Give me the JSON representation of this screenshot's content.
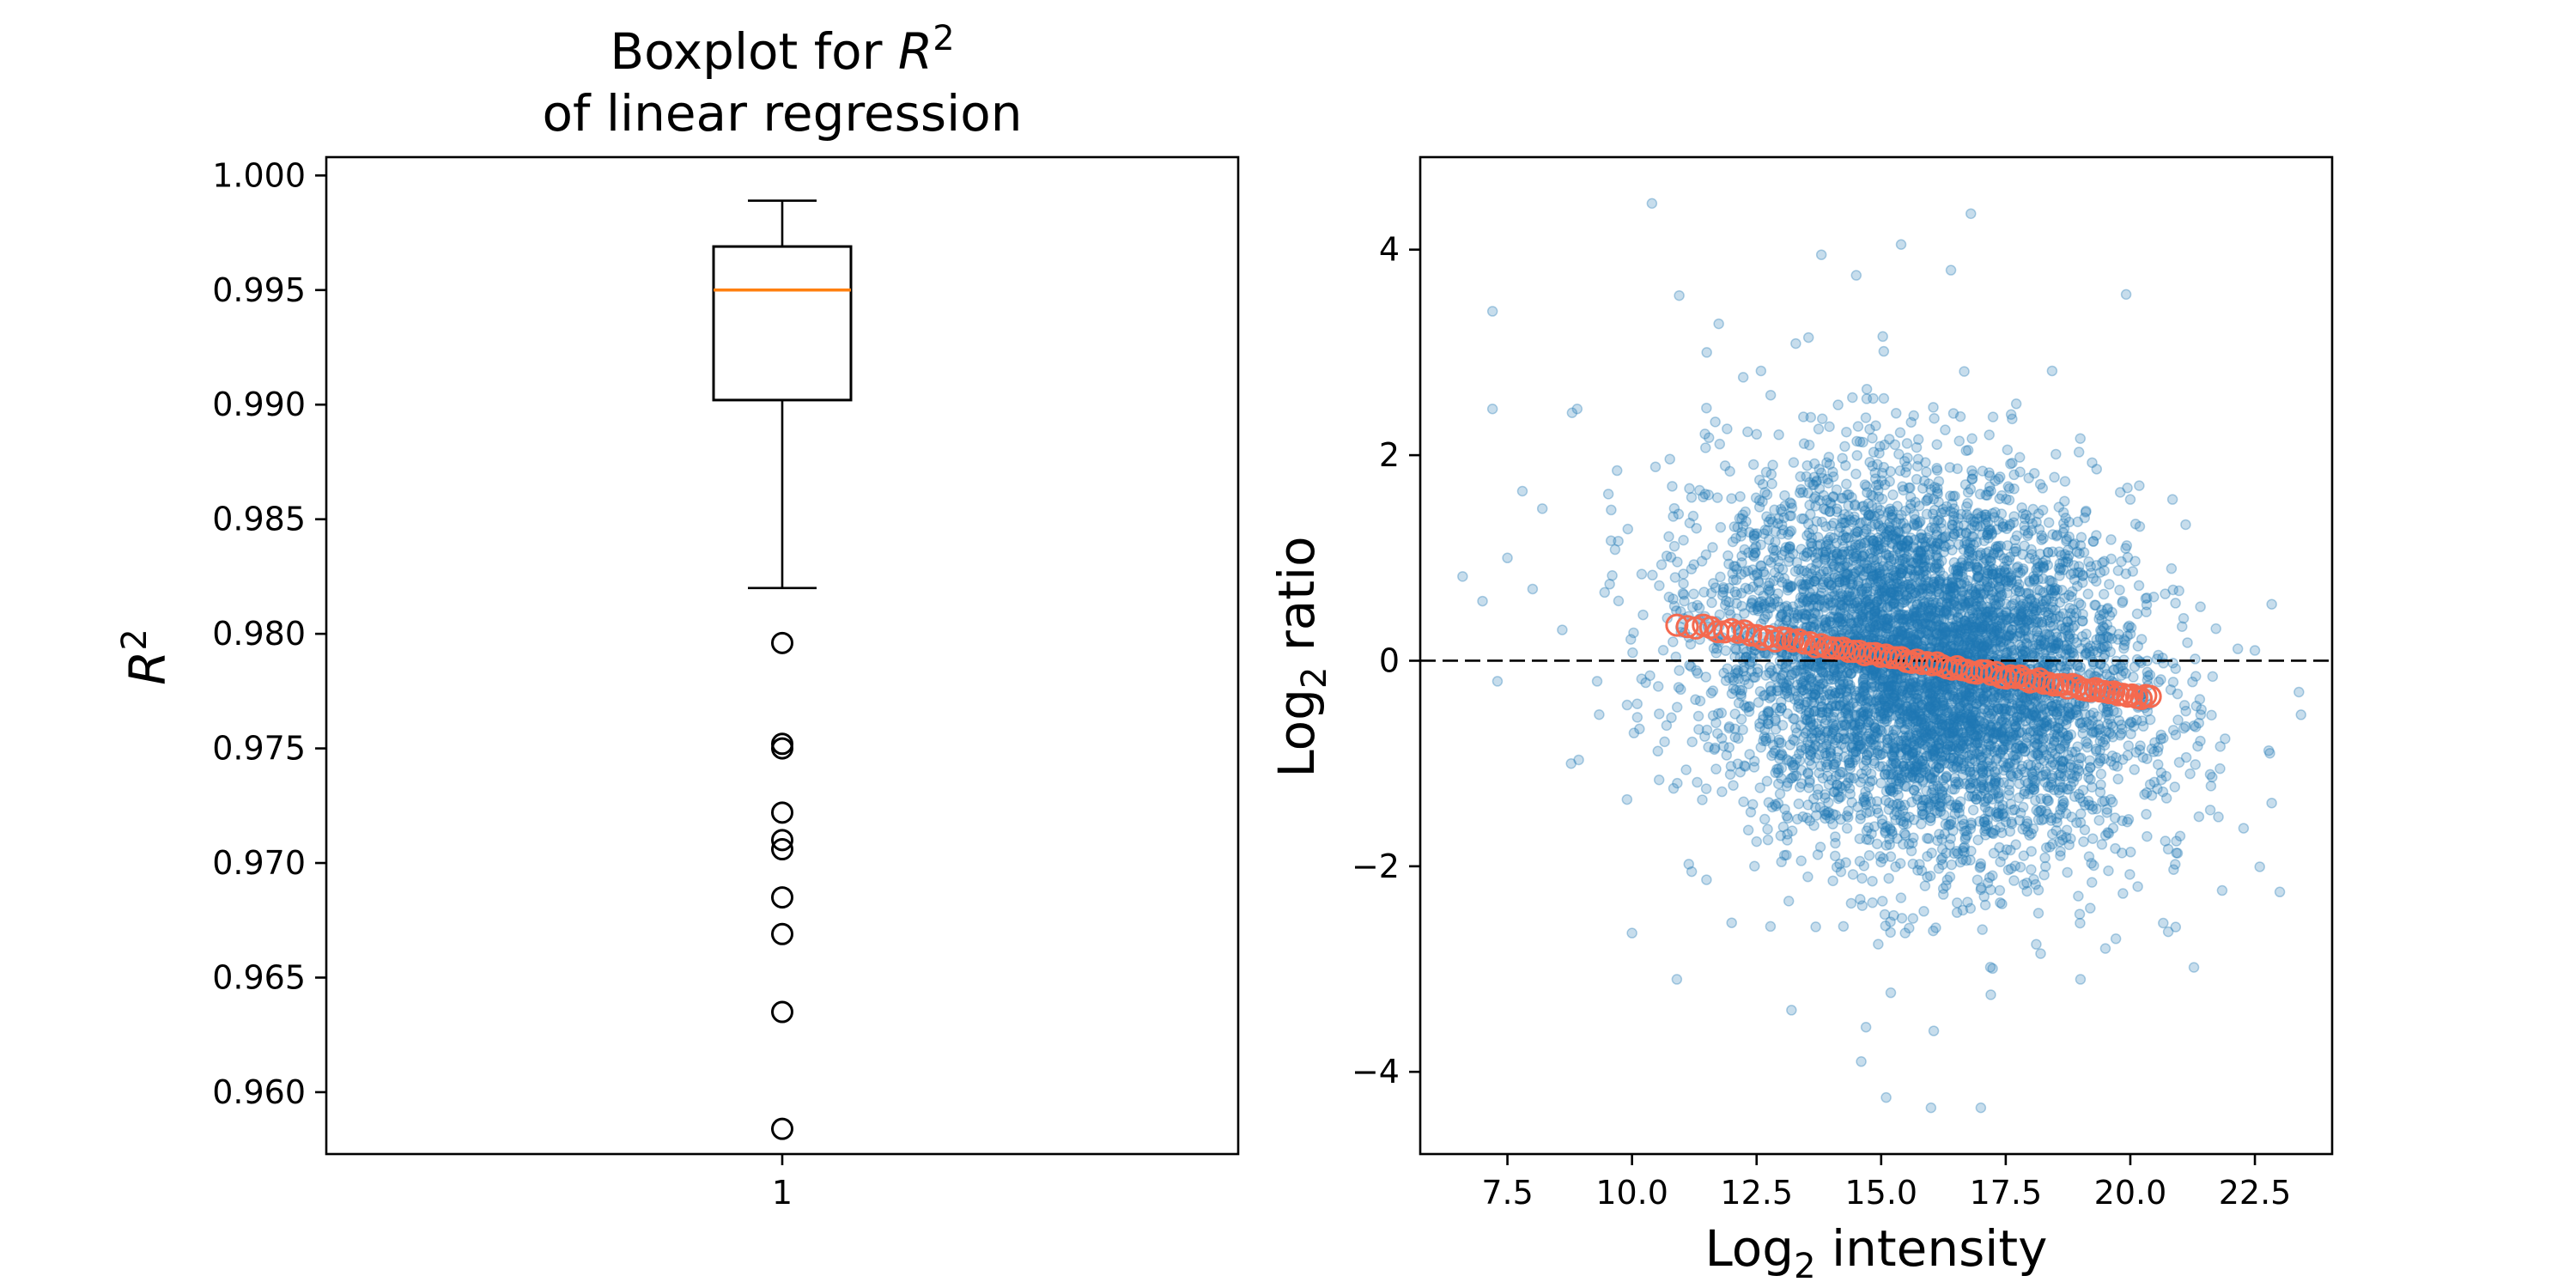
{
  "chart_data": [
    {
      "type": "box",
      "title_line1": "Boxplot for ",
      "title_sym": "R",
      "title_sup": "2",
      "title_line2": "of linear regression",
      "ylabel_sym": "R",
      "ylabel_sup": "2",
      "xlabel": "",
      "ylim": [
        0.9573,
        1.0008
      ],
      "yticks": [
        "0.960",
        "0.965",
        "0.970",
        "0.975",
        "0.980",
        "0.985",
        "0.990",
        "0.995",
        "1.000"
      ],
      "ytick_values": [
        0.96,
        0.965,
        0.97,
        0.975,
        0.98,
        0.985,
        0.99,
        0.995,
        1.0
      ],
      "xticks": [
        "1"
      ],
      "box": {
        "whisker_low": 0.982,
        "q1": 0.9902,
        "median": 0.995,
        "q3": 0.9969,
        "whisker_high": 0.9989
      },
      "fliers": [
        0.9796,
        0.9752,
        0.975,
        0.9722,
        0.971,
        0.9706,
        0.9685,
        0.9669,
        0.9635,
        0.9584
      ],
      "colors": {
        "median": "#ff7f0e",
        "box": "#000000",
        "flier": "#000000"
      }
    },
    {
      "type": "scatter",
      "xlabel_pre": "Log",
      "xlabel_sub": "2",
      "xlabel_post": " intensity",
      "ylabel_pre": "Log",
      "ylabel_sub": "2",
      "ylabel_post": " ratio",
      "xlim": [
        5.75,
        24.05
      ],
      "ylim": [
        -4.8,
        4.9
      ],
      "xticks": [
        "7.5",
        "10.0",
        "12.5",
        "15.0",
        "17.5",
        "20.0",
        "22.5"
      ],
      "xtick_values": [
        7.5,
        10.0,
        12.5,
        15.0,
        17.5,
        20.0,
        22.5
      ],
      "yticks": [
        "−4",
        "−2",
        "0",
        "2",
        "4"
      ],
      "ytick_values": [
        -4,
        -2,
        0,
        2,
        4
      ],
      "reference_line_y": 0,
      "series": [
        {
          "kind": "cloud",
          "color": "#1f77b4",
          "opacity": 0.25,
          "approx_points": 6000,
          "x_center": 15.9,
          "x_spread": 2.1,
          "y_center": 0.0,
          "y_spread": 0.8,
          "visible_outliers": [
            [
              6.6,
              0.82
            ],
            [
              7.0,
              0.58
            ],
            [
              7.2,
              3.4
            ],
            [
              7.2,
              2.45
            ],
            [
              7.3,
              -0.2
            ],
            [
              7.5,
              1.0
            ],
            [
              7.8,
              1.65
            ],
            [
              8.2,
              1.48
            ],
            [
              8.6,
              0.3
            ],
            [
              8.9,
              2.45
            ],
            [
              9.3,
              -0.2
            ],
            [
              9.7,
              1.85
            ],
            [
              9.9,
              -1.35
            ],
            [
              10.0,
              -2.65
            ],
            [
              10.4,
              4.45
            ],
            [
              10.9,
              -3.1
            ],
            [
              11.5,
              3.0
            ],
            [
              13.2,
              -3.4
            ],
            [
              13.8,
              3.95
            ],
            [
              14.5,
              3.75
            ],
            [
              14.6,
              -3.9
            ],
            [
              15.1,
              -4.25
            ],
            [
              15.4,
              4.05
            ],
            [
              16.0,
              -4.35
            ],
            [
              16.4,
              3.8
            ],
            [
              16.8,
              4.35
            ],
            [
              17.0,
              -4.35
            ],
            [
              17.2,
              -3.25
            ],
            [
              18.2,
              -2.85
            ],
            [
              19.5,
              -2.8
            ],
            [
              20.7,
              0.65
            ],
            [
              21.2,
              -1.1
            ],
            [
              21.8,
              -1.05
            ],
            [
              22.8,
              -0.9
            ],
            [
              23.0,
              -2.25
            ],
            [
              22.5,
              0.1
            ],
            [
              12.0,
              -2.55
            ],
            [
              19.0,
              -3.1
            ]
          ]
        },
        {
          "kind": "trend",
          "color": "#f4694f",
          "marker": "open-circle",
          "x_start": 10.9,
          "x_end": 20.4,
          "y_start": 0.37,
          "y_end": -0.37
        }
      ]
    }
  ]
}
